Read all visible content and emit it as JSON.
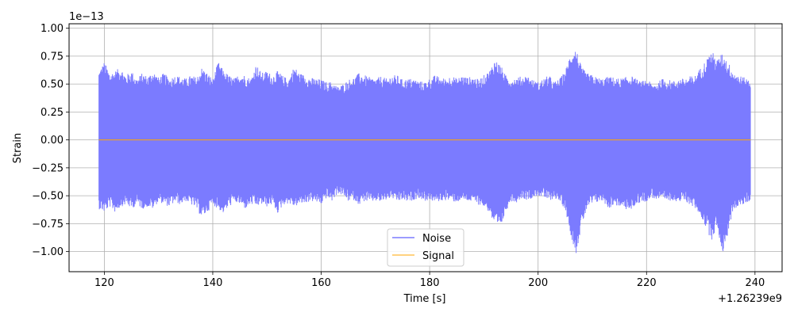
{
  "chart_data": {
    "type": "line",
    "title": "",
    "xlabel": "Time [s]",
    "ylabel": "Strain",
    "x_offset_label": "+1.26239e9",
    "y_scale_label": "1e−13",
    "xlim": [
      113.5,
      245.0
    ],
    "ylim": [
      -1.18,
      1.04
    ],
    "x_ticks": [
      120,
      140,
      160,
      180,
      200,
      220,
      240
    ],
    "x_tick_labels": [
      "120",
      "140",
      "160",
      "180",
      "200",
      "220",
      "240"
    ],
    "y_ticks": [
      1.0,
      0.75,
      0.5,
      0.25,
      0.0,
      -0.25,
      -0.5,
      -0.75,
      -1.0
    ],
    "y_tick_labels": [
      "1.00",
      "0.75",
      "0.50",
      "0.25",
      "0.00",
      "−0.25",
      "−0.50",
      "−0.75",
      "−1.00"
    ],
    "grid": true,
    "legend_position": "bottom-center",
    "series": [
      {
        "name": "Noise",
        "color": "#7b7bff",
        "x_range": [
          119.0,
          239.2
        ],
        "envelope_upper": [
          [
            119,
            0.62
          ],
          [
            120,
            0.7
          ],
          [
            121,
            0.6
          ],
          [
            122,
            0.62
          ],
          [
            123,
            0.65
          ],
          [
            124,
            0.58
          ],
          [
            125,
            0.62
          ],
          [
            126,
            0.55
          ],
          [
            127,
            0.6
          ],
          [
            128,
            0.57
          ],
          [
            129,
            0.62
          ],
          [
            130,
            0.56
          ],
          [
            131,
            0.6
          ],
          [
            132,
            0.55
          ],
          [
            133,
            0.58
          ],
          [
            134,
            0.57
          ],
          [
            135,
            0.55
          ],
          [
            136,
            0.58
          ],
          [
            137,
            0.56
          ],
          [
            138,
            0.65
          ],
          [
            139,
            0.6
          ],
          [
            140,
            0.55
          ],
          [
            141,
            0.7
          ],
          [
            142,
            0.62
          ],
          [
            143,
            0.58
          ],
          [
            144,
            0.55
          ],
          [
            145,
            0.6
          ],
          [
            146,
            0.58
          ],
          [
            147,
            0.55
          ],
          [
            148,
            0.68
          ],
          [
            149,
            0.6
          ],
          [
            150,
            0.62
          ],
          [
            151,
            0.58
          ],
          [
            152,
            0.62
          ],
          [
            153,
            0.57
          ],
          [
            154,
            0.55
          ],
          [
            155,
            0.66
          ],
          [
            156,
            0.6
          ],
          [
            157,
            0.58
          ],
          [
            158,
            0.56
          ],
          [
            159,
            0.55
          ],
          [
            160,
            0.54
          ],
          [
            161,
            0.52
          ],
          [
            162,
            0.52
          ],
          [
            163,
            0.48
          ],
          [
            164,
            0.5
          ],
          [
            165,
            0.54
          ],
          [
            166,
            0.56
          ],
          [
            167,
            0.6
          ],
          [
            168,
            0.58
          ],
          [
            169,
            0.56
          ],
          [
            170,
            0.55
          ],
          [
            171,
            0.57
          ],
          [
            172,
            0.55
          ],
          [
            173,
            0.58
          ],
          [
            174,
            0.58
          ],
          [
            175,
            0.54
          ],
          [
            176,
            0.55
          ],
          [
            177,
            0.55
          ],
          [
            178,
            0.53
          ],
          [
            179,
            0.52
          ],
          [
            180,
            0.55
          ],
          [
            181,
            0.58
          ],
          [
            182,
            0.56
          ],
          [
            183,
            0.55
          ],
          [
            184,
            0.58
          ],
          [
            185,
            0.55
          ],
          [
            186,
            0.58
          ],
          [
            187,
            0.56
          ],
          [
            188,
            0.57
          ],
          [
            189,
            0.54
          ],
          [
            190,
            0.58
          ],
          [
            191,
            0.62
          ],
          [
            192,
            0.72
          ],
          [
            193,
            0.68
          ],
          [
            194,
            0.58
          ],
          [
            195,
            0.55
          ],
          [
            196,
            0.56
          ],
          [
            197,
            0.57
          ],
          [
            198,
            0.58
          ],
          [
            199,
            0.54
          ],
          [
            200,
            0.52
          ],
          [
            201,
            0.55
          ],
          [
            202,
            0.58
          ],
          [
            203,
            0.52
          ],
          [
            204,
            0.55
          ],
          [
            205,
            0.62
          ],
          [
            206,
            0.78
          ],
          [
            207,
            0.82
          ],
          [
            208,
            0.65
          ],
          [
            209,
            0.6
          ],
          [
            210,
            0.58
          ],
          [
            211,
            0.56
          ],
          [
            212,
            0.55
          ],
          [
            213,
            0.57
          ],
          [
            214,
            0.56
          ],
          [
            215,
            0.55
          ],
          [
            216,
            0.56
          ],
          [
            217,
            0.58
          ],
          [
            218,
            0.55
          ],
          [
            219,
            0.52
          ],
          [
            220,
            0.55
          ],
          [
            221,
            0.5
          ],
          [
            222,
            0.52
          ],
          [
            223,
            0.55
          ],
          [
            224,
            0.54
          ],
          [
            225,
            0.53
          ],
          [
            226,
            0.55
          ],
          [
            227,
            0.55
          ],
          [
            228,
            0.57
          ],
          [
            229,
            0.58
          ],
          [
            230,
            0.65
          ],
          [
            231,
            0.72
          ],
          [
            232,
            0.8
          ],
          [
            233,
            0.72
          ],
          [
            234,
            0.78
          ],
          [
            235,
            0.7
          ],
          [
            236,
            0.62
          ],
          [
            237,
            0.58
          ],
          [
            238,
            0.56
          ],
          [
            239,
            0.55
          ]
        ],
        "envelope_lower": [
          [
            119,
            -0.62
          ],
          [
            120,
            -0.65
          ],
          [
            121,
            -0.6
          ],
          [
            122,
            -0.65
          ],
          [
            123,
            -0.6
          ],
          [
            124,
            -0.58
          ],
          [
            125,
            -0.62
          ],
          [
            126,
            -0.58
          ],
          [
            127,
            -0.62
          ],
          [
            128,
            -0.6
          ],
          [
            129,
            -0.62
          ],
          [
            130,
            -0.55
          ],
          [
            131,
            -0.58
          ],
          [
            132,
            -0.6
          ],
          [
            133,
            -0.56
          ],
          [
            134,
            -0.58
          ],
          [
            135,
            -0.55
          ],
          [
            136,
            -0.58
          ],
          [
            137,
            -0.62
          ],
          [
            138,
            -0.7
          ],
          [
            139,
            -0.65
          ],
          [
            140,
            -0.58
          ],
          [
            141,
            -0.62
          ],
          [
            142,
            -0.66
          ],
          [
            143,
            -0.6
          ],
          [
            144,
            -0.56
          ],
          [
            145,
            -0.58
          ],
          [
            146,
            -0.62
          ],
          [
            147,
            -0.58
          ],
          [
            148,
            -0.6
          ],
          [
            149,
            -0.58
          ],
          [
            150,
            -0.6
          ],
          [
            151,
            -0.58
          ],
          [
            152,
            -0.66
          ],
          [
            153,
            -0.58
          ],
          [
            154,
            -0.57
          ],
          [
            155,
            -0.6
          ],
          [
            156,
            -0.58
          ],
          [
            157,
            -0.57
          ],
          [
            158,
            -0.55
          ],
          [
            159,
            -0.56
          ],
          [
            160,
            -0.58
          ],
          [
            161,
            -0.52
          ],
          [
            162,
            -0.55
          ],
          [
            163,
            -0.48
          ],
          [
            164,
            -0.5
          ],
          [
            165,
            -0.55
          ],
          [
            166,
            -0.54
          ],
          [
            167,
            -0.58
          ],
          [
            168,
            -0.55
          ],
          [
            169,
            -0.56
          ],
          [
            170,
            -0.55
          ],
          [
            171,
            -0.56
          ],
          [
            172,
            -0.54
          ],
          [
            173,
            -0.52
          ],
          [
            174,
            -0.56
          ],
          [
            175,
            -0.54
          ],
          [
            176,
            -0.56
          ],
          [
            177,
            -0.54
          ],
          [
            178,
            -0.52
          ],
          [
            179,
            -0.55
          ],
          [
            180,
            -0.54
          ],
          [
            181,
            -0.56
          ],
          [
            182,
            -0.55
          ],
          [
            183,
            -0.54
          ],
          [
            184,
            -0.55
          ],
          [
            185,
            -0.56
          ],
          [
            186,
            -0.54
          ],
          [
            187,
            -0.55
          ],
          [
            188,
            -0.56
          ],
          [
            189,
            -0.58
          ],
          [
            190,
            -0.6
          ],
          [
            191,
            -0.65
          ],
          [
            192,
            -0.78
          ],
          [
            193,
            -0.8
          ],
          [
            194,
            -0.65
          ],
          [
            195,
            -0.55
          ],
          [
            196,
            -0.56
          ],
          [
            197,
            -0.52
          ],
          [
            198,
            -0.54
          ],
          [
            199,
            -0.52
          ],
          [
            200,
            -0.5
          ],
          [
            201,
            -0.52
          ],
          [
            202,
            -0.55
          ],
          [
            203,
            -0.52
          ],
          [
            204,
            -0.56
          ],
          [
            205,
            -0.62
          ],
          [
            206,
            -0.85
          ],
          [
            207,
            -1.02
          ],
          [
            208,
            -0.78
          ],
          [
            209,
            -0.62
          ],
          [
            210,
            -0.58
          ],
          [
            211,
            -0.56
          ],
          [
            212,
            -0.55
          ],
          [
            213,
            -0.62
          ],
          [
            214,
            -0.58
          ],
          [
            215,
            -0.6
          ],
          [
            216,
            -0.62
          ],
          [
            217,
            -0.64
          ],
          [
            218,
            -0.58
          ],
          [
            219,
            -0.56
          ],
          [
            220,
            -0.55
          ],
          [
            221,
            -0.52
          ],
          [
            222,
            -0.54
          ],
          [
            223,
            -0.55
          ],
          [
            224,
            -0.55
          ],
          [
            225,
            -0.54
          ],
          [
            226,
            -0.56
          ],
          [
            227,
            -0.55
          ],
          [
            228,
            -0.58
          ],
          [
            229,
            -0.62
          ],
          [
            230,
            -0.68
          ],
          [
            231,
            -0.8
          ],
          [
            232,
            -0.9
          ],
          [
            233,
            -0.78
          ],
          [
            234,
            -1.02
          ],
          [
            235,
            -0.85
          ],
          [
            236,
            -0.62
          ],
          [
            237,
            -0.6
          ],
          [
            238,
            -0.58
          ],
          [
            239,
            -0.55
          ]
        ]
      },
      {
        "name": "Signal",
        "color": "#ffa500",
        "x": [
          119.0,
          239.2
        ],
        "y": [
          0.0,
          0.0
        ]
      }
    ]
  }
}
